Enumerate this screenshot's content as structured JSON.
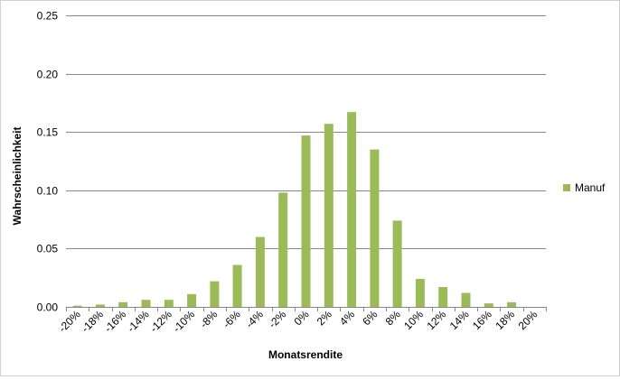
{
  "chart_data": {
    "type": "bar",
    "title": "",
    "xlabel": "Monatsrendite",
    "ylabel": "Wahrscheinlichkeit",
    "ylim": [
      0,
      0.25
    ],
    "yticks": [
      "0.00",
      "0.05",
      "0.10",
      "0.15",
      "0.20",
      "0.25"
    ],
    "grid": true,
    "legend_position": "right",
    "categories": [
      "-20%",
      "-18%",
      "-16%",
      "-14%",
      "-12%",
      "-10%",
      "-8%",
      "-6%",
      "-4%",
      "-2%",
      "0%",
      "2%",
      "4%",
      "6%",
      "8%",
      "10%",
      "12%",
      "14%",
      "16%",
      "18%",
      "20%"
    ],
    "series": [
      {
        "name": "Manuf",
        "color": "#9bbb59",
        "values": [
          0.001,
          0.002,
          0.004,
          0.006,
          0.006,
          0.011,
          0.022,
          0.036,
          0.06,
          0.098,
          0.147,
          0.157,
          0.167,
          0.135,
          0.074,
          0.024,
          0.017,
          0.012,
          0.003,
          0.004,
          0.0
        ]
      }
    ]
  }
}
